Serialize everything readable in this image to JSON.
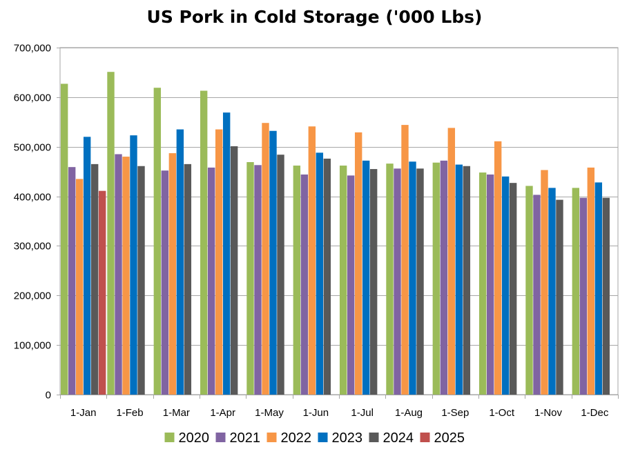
{
  "chart_data": {
    "type": "bar",
    "title": "US Pork in Cold Storage ('000 Lbs)",
    "xlabel": "",
    "ylabel": "",
    "ylim": [
      0,
      700000
    ],
    "yticks": [
      "0",
      "100,000",
      "200,000",
      "300,000",
      "400,000",
      "500,000",
      "600,000",
      "700,000"
    ],
    "yticks_values": [
      0,
      100000,
      200000,
      300000,
      400000,
      500000,
      600000,
      700000
    ],
    "grid": true,
    "legend": "bottom",
    "categories": [
      "1-Jan",
      "1-Feb",
      "1-Mar",
      "1-Apr",
      "1-May",
      "1-Jun",
      "1-Jul",
      "1-Aug",
      "1-Sep",
      "1-Oct",
      "1-Nov",
      "1-Dec"
    ],
    "series": [
      {
        "name": "2020",
        "color": "#9BBB59",
        "values": [
          627000,
          651000,
          619000,
          613000,
          469000,
          462000,
          462000,
          466000,
          468000,
          448000,
          421000,
          417000
        ]
      },
      {
        "name": "2021",
        "color": "#8064A2",
        "values": [
          459000,
          485000,
          452000,
          458000,
          463000,
          444000,
          442000,
          456000,
          472000,
          444000,
          403000,
          397000
        ]
      },
      {
        "name": "2022",
        "color": "#F79646",
        "values": [
          435000,
          480000,
          487000,
          535000,
          548000,
          541000,
          529000,
          544000,
          538000,
          511000,
          453000,
          458000
        ]
      },
      {
        "name": "2023",
        "color": "#0070C0",
        "values": [
          520000,
          523000,
          535000,
          569000,
          532000,
          488000,
          472000,
          470000,
          464000,
          440000,
          417000,
          428000
        ]
      },
      {
        "name": "2024",
        "color": "#595959",
        "values": [
          465000,
          461000,
          465000,
          501000,
          484000,
          476000,
          455000,
          456000,
          461000,
          427000,
          393000,
          397000
        ]
      },
      {
        "name": "2025",
        "color": "#C0504D",
        "values": [
          411000,
          null,
          null,
          null,
          null,
          null,
          null,
          null,
          null,
          null,
          null,
          null
        ]
      }
    ]
  }
}
